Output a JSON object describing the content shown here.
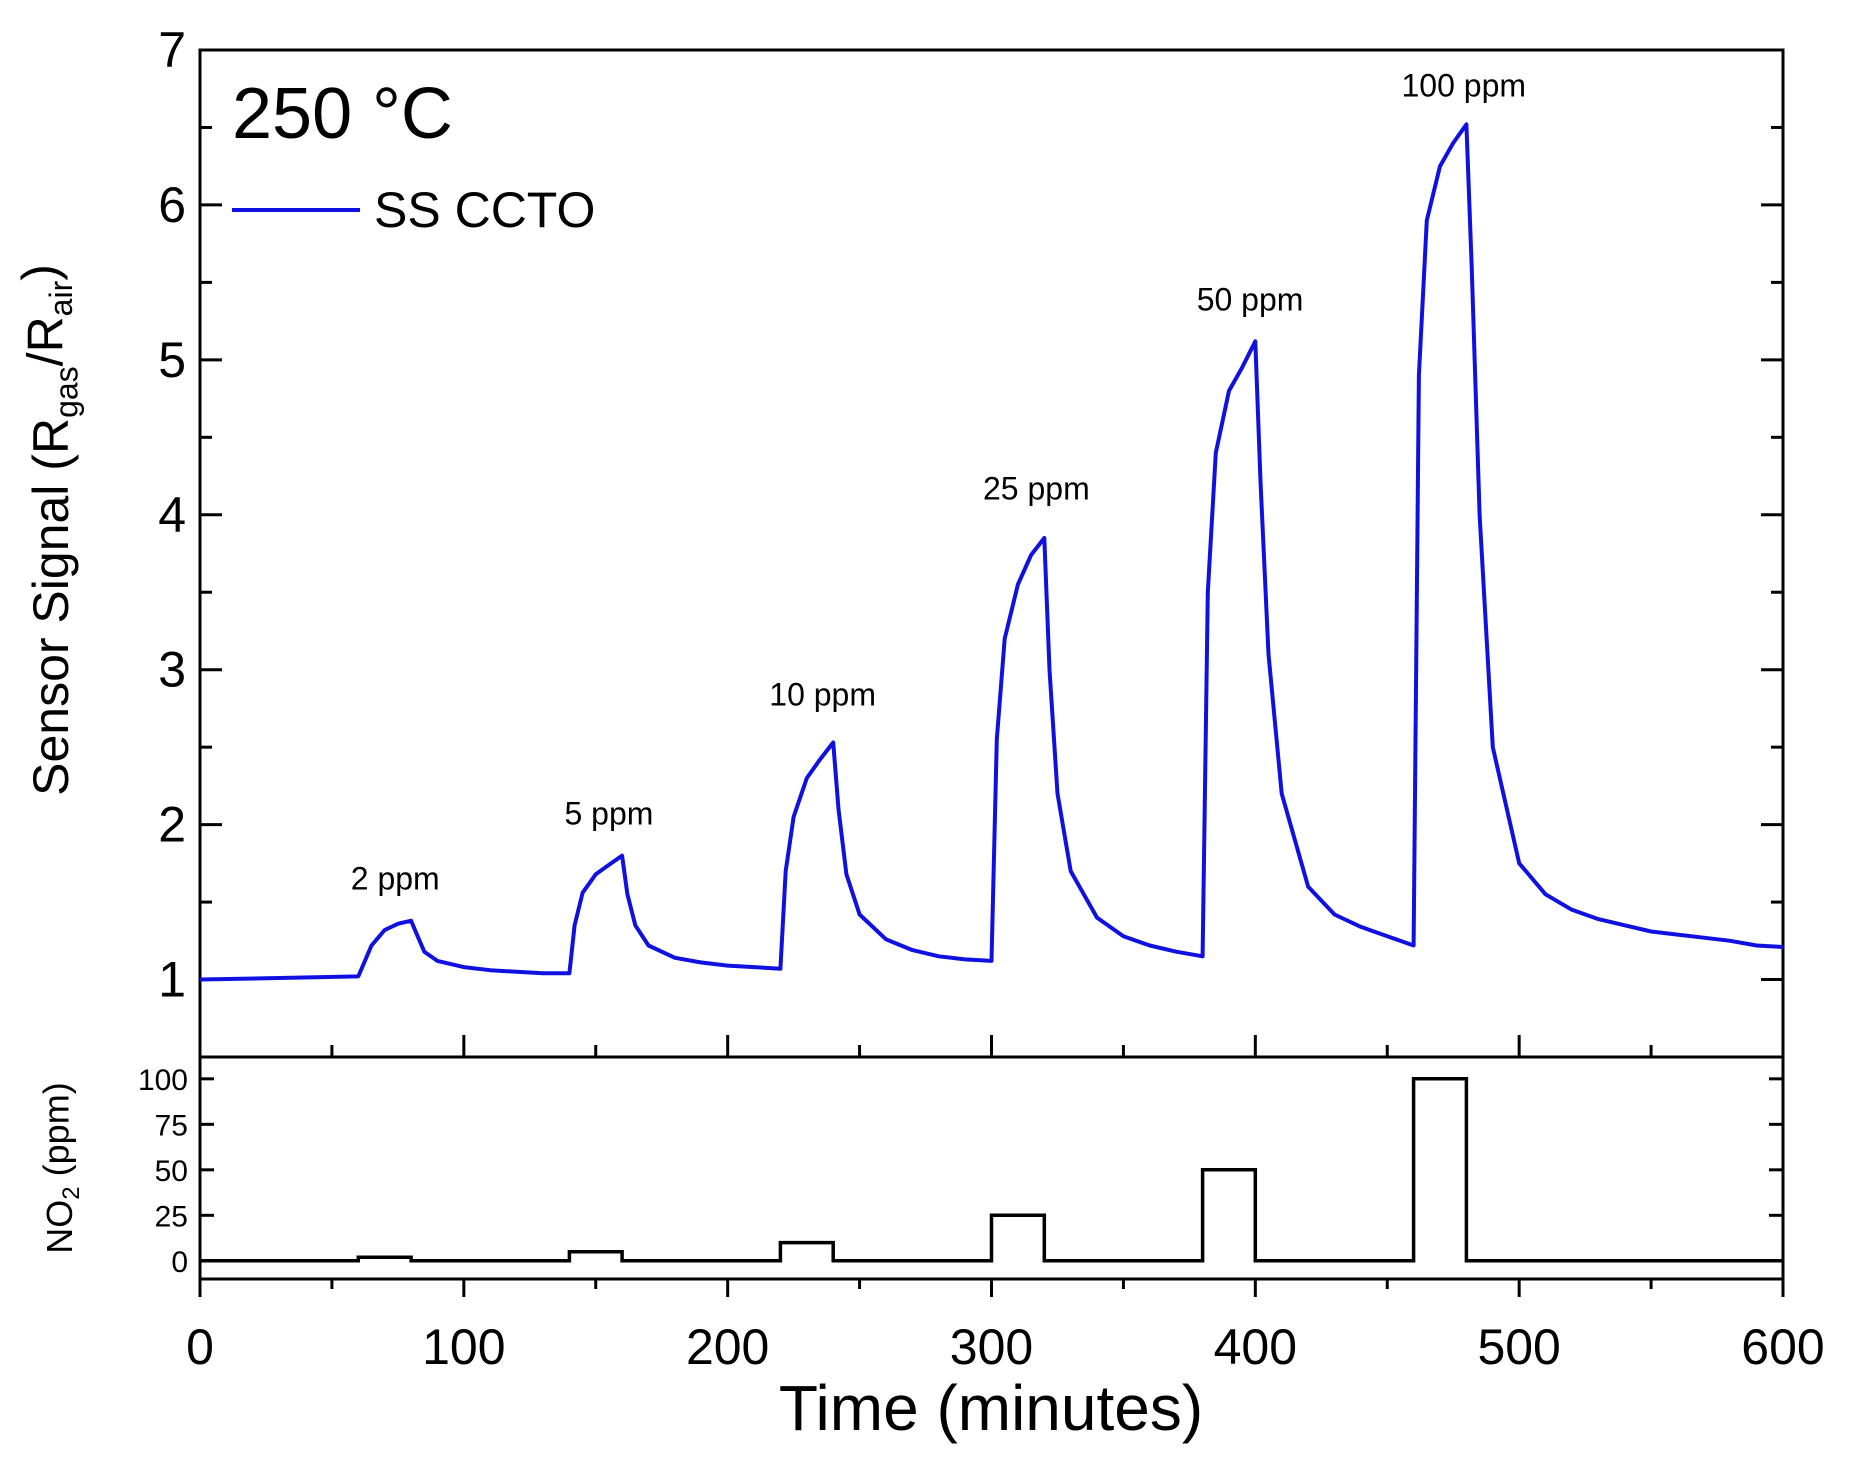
{
  "chart_data": {
    "type": "line",
    "title": "250 °C",
    "colors": {
      "sensor": "#1010e0",
      "no2": "#000000"
    },
    "top_panel": {
      "ylabel_parts": [
        "Sensor Signal (R",
        "gas",
        "/R",
        "air",
        ")"
      ],
      "ylim": [
        0.5,
        7
      ],
      "yticks": [
        "1",
        "2",
        "3",
        "4",
        "5",
        "6",
        "7"
      ],
      "legend": "SS CCTO",
      "legend_position": "top-left",
      "series": [
        {
          "name": "SS CCTO",
          "x": [
            0,
            30,
            60,
            62,
            65,
            70,
            75,
            80,
            82,
            85,
            90,
            100,
            110,
            120,
            130,
            140,
            142,
            145,
            150,
            155,
            160,
            162,
            165,
            170,
            180,
            190,
            200,
            210,
            220,
            222,
            225,
            230,
            235,
            240,
            242,
            245,
            250,
            260,
            270,
            280,
            290,
            300,
            302,
            305,
            310,
            315,
            320,
            322,
            325,
            330,
            340,
            350,
            360,
            370,
            380,
            382,
            385,
            390,
            395,
            400,
            402,
            405,
            410,
            420,
            430,
            440,
            450,
            460,
            462,
            465,
            470,
            475,
            480,
            482,
            485,
            490,
            500,
            510,
            520,
            530,
            540,
            550,
            560,
            570,
            580,
            590,
            600
          ],
          "y": [
            1.0,
            1.01,
            1.02,
            1.1,
            1.22,
            1.32,
            1.36,
            1.38,
            1.3,
            1.18,
            1.12,
            1.08,
            1.06,
            1.05,
            1.04,
            1.04,
            1.35,
            1.56,
            1.68,
            1.74,
            1.8,
            1.55,
            1.35,
            1.22,
            1.14,
            1.11,
            1.09,
            1.08,
            1.07,
            1.7,
            2.05,
            2.3,
            2.42,
            2.53,
            2.1,
            1.68,
            1.42,
            1.26,
            1.19,
            1.15,
            1.13,
            1.12,
            2.55,
            3.2,
            3.55,
            3.74,
            3.85,
            3.0,
            2.2,
            1.7,
            1.4,
            1.28,
            1.22,
            1.18,
            1.15,
            3.5,
            4.4,
            4.8,
            4.95,
            5.12,
            4.2,
            3.1,
            2.2,
            1.6,
            1.42,
            1.34,
            1.28,
            1.22,
            4.9,
            5.9,
            6.25,
            6.4,
            6.52,
            5.6,
            4.0,
            2.5,
            1.75,
            1.55,
            1.45,
            1.39,
            1.35,
            1.31,
            1.29,
            1.27,
            1.25,
            1.22,
            1.21
          ]
        }
      ],
      "annotations": [
        {
          "text": "2 ppm",
          "x": 74,
          "y": 1.58
        },
        {
          "text": "5 ppm",
          "x": 155,
          "y": 2.0
        },
        {
          "text": "10 ppm",
          "x": 236,
          "y": 2.77
        },
        {
          "text": "25 ppm",
          "x": 317,
          "y": 4.1
        },
        {
          "text": "50 ppm",
          "x": 398,
          "y": 5.32
        },
        {
          "text": "100 ppm",
          "x": 479,
          "y": 6.7
        }
      ]
    },
    "bottom_panel": {
      "ylabel_parts": [
        "NO",
        "2",
        " (ppm)"
      ],
      "ylim": [
        -10,
        112
      ],
      "yticks": [
        "0",
        "25",
        "50",
        "75",
        "100"
      ],
      "series": [
        {
          "name": "NO2",
          "x": [
            0,
            60,
            60,
            80,
            80,
            140,
            140,
            160,
            160,
            220,
            220,
            240,
            240,
            300,
            300,
            320,
            320,
            380,
            380,
            400,
            400,
            460,
            460,
            480,
            480,
            600
          ],
          "y": [
            0,
            0,
            2,
            2,
            0,
            0,
            5,
            5,
            0,
            0,
            10,
            10,
            0,
            0,
            25,
            25,
            0,
            0,
            50,
            50,
            0,
            0,
            100,
            100,
            0,
            0
          ]
        }
      ]
    },
    "xlabel": "Time (minutes)",
    "xlim": [
      0,
      600
    ],
    "xticks": [
      "0",
      "100",
      "200",
      "300",
      "400",
      "500",
      "600"
    ],
    "grid": false
  }
}
